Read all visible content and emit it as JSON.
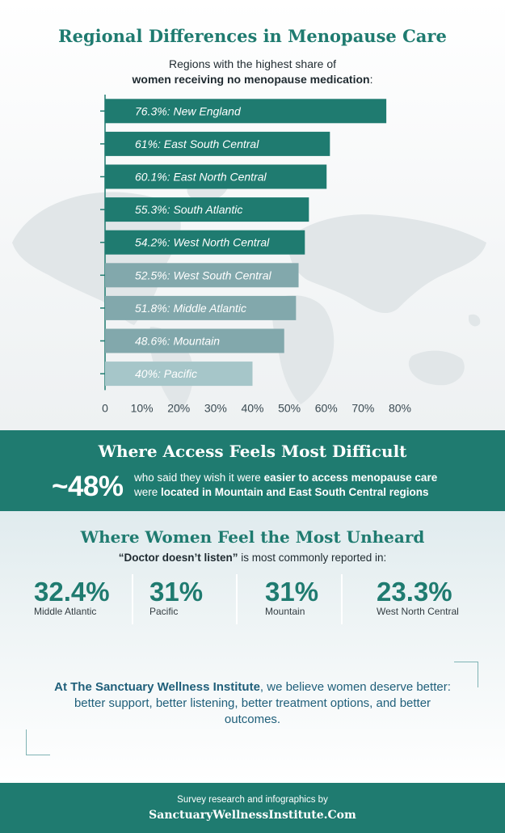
{
  "title": "Regional Differences in Menopause Care",
  "subtitle": {
    "line1": "Regions with the highest share of",
    "line2_bold": "women receiving no menopause medication",
    "line2_end": ":"
  },
  "colors": {
    "teal": "#1f7b70",
    "mid_teal": "#82a8ac",
    "light_teal": "#a6c6c9",
    "closing_text": "#1f5f7a"
  },
  "chart_data": {
    "type": "bar",
    "orientation": "horizontal",
    "categories": [
      "New England",
      "East South Central",
      "East North Central",
      "South Atlantic",
      "West North Central",
      "West South Central",
      "Middle Atlantic",
      "Mountain",
      "Pacific"
    ],
    "values": [
      76.3,
      61,
      60.1,
      55.3,
      54.2,
      52.5,
      51.8,
      48.6,
      40
    ],
    "data_labels": [
      "76.3%: New England",
      "61%: East South Central",
      "60.1%: East North Central",
      "55.3%: South Atlantic",
      "54.2%: West North Central",
      "52.5%: West South Central",
      "51.8%: Middle Atlantic",
      "48.6%: Mountain",
      "40%: Pacific"
    ],
    "bar_colors": [
      "#1f7b70",
      "#1f7b70",
      "#1f7b70",
      "#1f7b70",
      "#1f7b70",
      "#82a8ac",
      "#82a8ac",
      "#82a8ac",
      "#a6c6c9"
    ],
    "xlim": [
      0,
      80
    ],
    "xticks": [
      "0",
      "10%",
      "20%",
      "30%",
      "40%",
      "50%",
      "60%",
      "70%",
      "80%"
    ],
    "grid": false,
    "legend": "none"
  },
  "access": {
    "heading": "Where Access Feels Most Difficult",
    "big_stat": "~48%",
    "line1_pre": "who said they wish it were ",
    "line1_bold": "easier to access menopause care",
    "line2_pre": "were ",
    "line2_bold": "located in Mountain and East South Central regions"
  },
  "unheard": {
    "heading": "Where Women Feel the Most Unheard",
    "sub_bold": "“Doctor doesn’t listen”",
    "sub_rest": " is most commonly reported in:",
    "stats": [
      {
        "value": "32.4%",
        "label": "Middle Atlantic"
      },
      {
        "value": "31%",
        "label": "Pacific"
      },
      {
        "value": "31%",
        "label": "Mountain"
      },
      {
        "value": "23.3%",
        "label": "West North Central"
      }
    ]
  },
  "closing": {
    "bold": "At The Sanctuary Wellness Institute",
    "rest": ", we believe women deserve better: better support, better listening, better treatment options, and better outcomes."
  },
  "footer": {
    "line1": "Survey research and infographics by",
    "line2": "SanctuaryWellnessInstitute.Com"
  }
}
